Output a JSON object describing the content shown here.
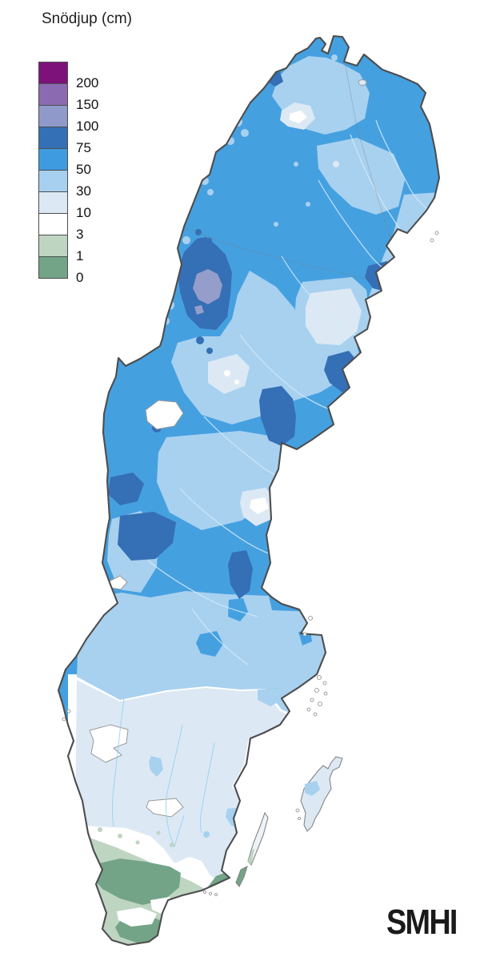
{
  "legend": {
    "title": "Snödjup (cm)",
    "items": [
      {
        "label": "200",
        "color": "#7e127b"
      },
      {
        "label": "150",
        "color": "#8b6ab1"
      },
      {
        "label": "100",
        "color": "#8f9aca"
      },
      {
        "label": "75",
        "color": "#3470b6"
      },
      {
        "label": "50",
        "color": "#3f9bdf"
      },
      {
        "label": "30",
        "color": "#a7d0f0"
      },
      {
        "label": "10",
        "color": "#dce9f4"
      },
      {
        "label": "3",
        "color": "#ffffff"
      },
      {
        "label": "1",
        "color": "#bed5c2"
      },
      {
        "label": "0",
        "color": "#73a487"
      }
    ]
  },
  "branding": {
    "logo_text": "SMHI"
  },
  "map": {
    "subject": "Sweden snow depth map",
    "palette": {
      "c200": "#7e127b",
      "c150": "#8b6ab1",
      "c100": "#959dca",
      "c75": "#356fb5",
      "c50": "#45a0e0",
      "c30": "#a8d1f0",
      "c10": "#dce9f4",
      "c3": "#ffffff",
      "c1": "#bed5c2",
      "c0": "#73a487",
      "outline": "#4d4d4d",
      "riverN": "#cfe9f8",
      "riverS": "#8fcdee"
    }
  }
}
